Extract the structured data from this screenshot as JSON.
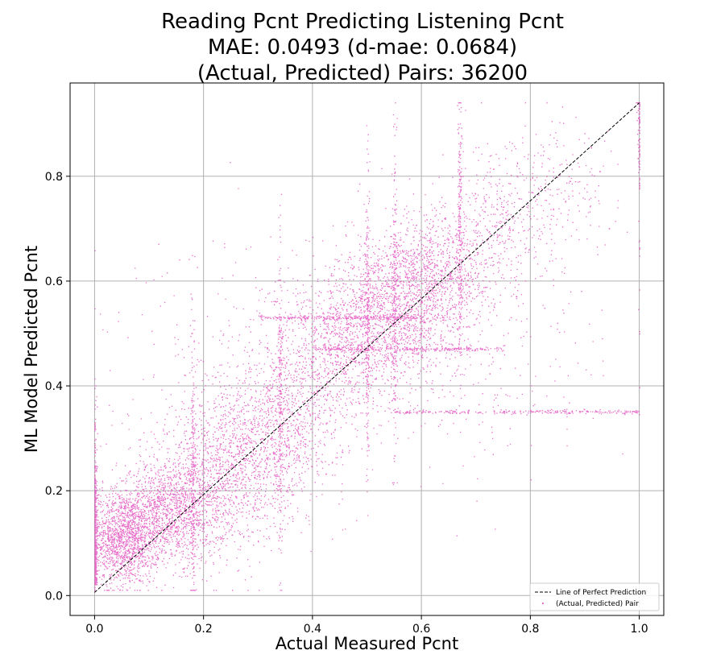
{
  "chart_data": {
    "type": "scatter",
    "title": [
      "Reading Pcnt Predicting Listening Pcnt",
      "MAE: 0.0493 (d-mae: 0.0684)",
      "(Actual, Predicted) Pairs: 36200"
    ],
    "xlabel": "Actual Measured Pcnt",
    "ylabel": "ML Model Predicted Pcnt",
    "xlim": [
      -0.045,
      1.045
    ],
    "ylim": [
      -0.038,
      0.978
    ],
    "xticks": [
      {
        "value": 0.0,
        "label": "0.0"
      },
      {
        "value": 0.2,
        "label": "0.2"
      },
      {
        "value": 0.4,
        "label": "0.4"
      },
      {
        "value": 0.6,
        "label": "0.6"
      },
      {
        "value": 0.8,
        "label": "0.8"
      },
      {
        "value": 1.0,
        "label": "1.0"
      }
    ],
    "yticks": [
      {
        "value": 0.0,
        "label": "0.0"
      },
      {
        "value": 0.2,
        "label": "0.2"
      },
      {
        "value": 0.4,
        "label": "0.4"
      },
      {
        "value": 0.6,
        "label": "0.6"
      },
      {
        "value": 0.8,
        "label": "0.8"
      }
    ],
    "grid": true,
    "legend": {
      "placement": "lower-right",
      "entries": [
        {
          "label": "Line of Perfect Prediction",
          "style": "dashed-line",
          "color": "#000000"
        },
        {
          "label": "(Actual, Predicted) Pair",
          "style": "point",
          "color": "#e040b8"
        }
      ]
    },
    "series": [
      {
        "name": "Line of Perfect Prediction",
        "kind": "line",
        "color": "#000000",
        "x": [
          0.0,
          1.0
        ],
        "y": [
          0.006,
          0.94
        ]
      },
      {
        "name": "(Actual, Predicted) Pair",
        "kind": "scatter",
        "color": "#e040b8",
        "n_points": 36200,
        "clusters": [
          {
            "x": 0.05,
            "y": 0.11,
            "sx": 0.035,
            "sy": 0.045,
            "weight": 18
          },
          {
            "x": 0.14,
            "y": 0.16,
            "sx": 0.05,
            "sy": 0.05,
            "weight": 16
          },
          {
            "x": 0.24,
            "y": 0.23,
            "sx": 0.06,
            "sy": 0.07,
            "weight": 13
          },
          {
            "x": 0.34,
            "y": 0.33,
            "sx": 0.06,
            "sy": 0.075,
            "weight": 11
          },
          {
            "x": 0.45,
            "y": 0.48,
            "sx": 0.06,
            "sy": 0.07,
            "weight": 11
          },
          {
            "x": 0.55,
            "y": 0.55,
            "sx": 0.055,
            "sy": 0.07,
            "weight": 13
          },
          {
            "x": 0.63,
            "y": 0.61,
            "sx": 0.05,
            "sy": 0.06,
            "weight": 10
          },
          {
            "x": 0.74,
            "y": 0.7,
            "sx": 0.06,
            "sy": 0.07,
            "weight": 5
          },
          {
            "x": 0.86,
            "y": 0.78,
            "sx": 0.07,
            "sy": 0.06,
            "weight": 2
          },
          {
            "x": 0.25,
            "y": 0.45,
            "sx": 0.12,
            "sy": 0.12,
            "weight": 3
          },
          {
            "x": 0.7,
            "y": 0.45,
            "sx": 0.12,
            "sy": 0.12,
            "weight": 3
          }
        ],
        "vertical_streaks": [
          0.0,
          0.18,
          0.34,
          0.5,
          0.55,
          0.67,
          1.0
        ],
        "horizontal_bands": [
          {
            "y": 0.35,
            "x_range": [
              0.55,
              1.0
            ]
          },
          {
            "y": 0.53,
            "x_range": [
              0.3,
              0.6
            ]
          },
          {
            "y": 0.47,
            "x_range": [
              0.4,
              0.75
            ]
          }
        ]
      }
    ]
  }
}
